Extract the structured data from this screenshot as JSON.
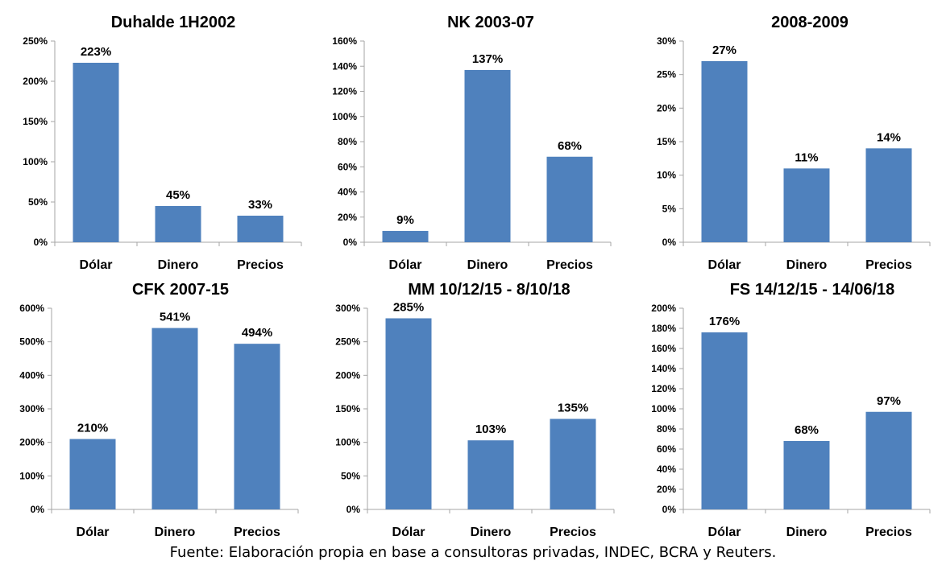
{
  "source": "Fuente: Elaboración propia en base a consultoras privadas, INDEC, BCRA y Reuters.",
  "colors": {
    "bar": "#4f81bd",
    "axis": "#a6a6a6",
    "text": "#000000"
  },
  "chart_data": [
    {
      "type": "bar",
      "title": "Duhalde 1H2002",
      "categories": [
        "Dólar",
        "Dinero",
        "Precios"
      ],
      "values": [
        223,
        45,
        33
      ],
      "value_labels": [
        "223%",
        "45%",
        "33%"
      ],
      "ylim": [
        0,
        250
      ],
      "yticks": [
        0,
        50,
        100,
        150,
        200,
        250
      ],
      "ytick_labels": [
        "0%",
        "50%",
        "100%",
        "150%",
        "200%",
        "250%"
      ],
      "grid": false
    },
    {
      "type": "bar",
      "title": "NK 2003-07",
      "categories": [
        "Dólar",
        "Dinero",
        "Precios"
      ],
      "values": [
        9,
        137,
        68
      ],
      "value_labels": [
        "9%",
        "137%",
        "68%"
      ],
      "ylim": [
        0,
        160
      ],
      "yticks": [
        0,
        20,
        40,
        60,
        80,
        100,
        120,
        140,
        160
      ],
      "ytick_labels": [
        "0%",
        "20%",
        "40%",
        "60%",
        "80%",
        "100%",
        "120%",
        "140%",
        "160%"
      ],
      "grid": false
    },
    {
      "type": "bar",
      "title": "2008-2009",
      "categories": [
        "Dólar",
        "Dinero",
        "Precios"
      ],
      "values": [
        27,
        11,
        14
      ],
      "value_labels": [
        "27%",
        "11%",
        "14%"
      ],
      "ylim": [
        0,
        30
      ],
      "yticks": [
        0,
        5,
        10,
        15,
        20,
        25,
        30
      ],
      "ytick_labels": [
        "0%",
        "5%",
        "10%",
        "15%",
        "20%",
        "25%",
        "30%"
      ],
      "grid": false
    },
    {
      "type": "bar",
      "title": "CFK 2007-15",
      "categories": [
        "Dólar",
        "Dinero",
        "Precios"
      ],
      "values": [
        210,
        541,
        494
      ],
      "value_labels": [
        "210%",
        "541%",
        "494%"
      ],
      "ylim": [
        0,
        600
      ],
      "yticks": [
        0,
        100,
        200,
        300,
        400,
        500,
        600
      ],
      "ytick_labels": [
        "0%",
        "100%",
        "200%",
        "300%",
        "400%",
        "500%",
        "600%"
      ],
      "grid": false
    },
    {
      "type": "bar",
      "title": "MM 10/12/15 - 8/10/18",
      "categories": [
        "Dólar",
        "Dinero",
        "Precios"
      ],
      "values": [
        285,
        103,
        135
      ],
      "value_labels": [
        "285%",
        "103%",
        "135%"
      ],
      "ylim": [
        0,
        300
      ],
      "yticks": [
        0,
        50,
        100,
        150,
        200,
        250,
        300
      ],
      "ytick_labels": [
        "0%",
        "50%",
        "100%",
        "150%",
        "200%",
        "250%",
        "300%"
      ],
      "grid": false
    },
    {
      "type": "bar",
      "title": "FS 14/12/15 - 14/06/18",
      "categories": [
        "Dólar",
        "Dinero",
        "Precios"
      ],
      "values": [
        176,
        68,
        97
      ],
      "value_labels": [
        "176%",
        "68%",
        "97%"
      ],
      "ylim": [
        0,
        200
      ],
      "yticks": [
        0,
        20,
        40,
        60,
        80,
        100,
        120,
        140,
        160,
        180,
        200
      ],
      "ytick_labels": [
        "0%",
        "20%",
        "40%",
        "60%",
        "80%",
        "100%",
        "120%",
        "140%",
        "160%",
        "180%",
        "200%"
      ],
      "grid": false
    }
  ]
}
